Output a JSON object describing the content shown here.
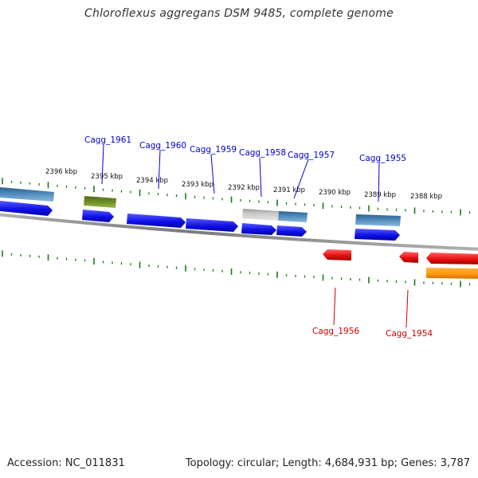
{
  "title": "Chloroflexus aggregans DSM 9485, complete genome",
  "footer": {
    "accession": "Accession: NC_011831",
    "summary": "Topology: circular; Length: 4,684,931 bp; Genes: 3,787"
  },
  "colors": {
    "forward_gene": "#1010e8",
    "reverse_gene": "#e81010",
    "rna": "#4a86b8",
    "olive": "#6b8e23",
    "gray_feature": "#c8c8c8",
    "orange_feature": "#ff9a10",
    "tick": "#1a7a1a",
    "backbone": "#8a8a8a",
    "label_forward": "#0000cc",
    "label_reverse": "#cc0000"
  },
  "scale_labels": [
    "2396 kbp",
    "2395 kbp",
    "2394 kbp",
    "2393 kbp",
    "2392 kbp",
    "2391 kbp",
    "2390 kbp",
    "2389 kbp",
    "2388 kbp"
  ],
  "forward_labels": [
    "Cagg_1961",
    "Cagg_1960",
    "Cagg_1959",
    "Cagg_1958",
    "Cagg_1957",
    "Cagg_1955"
  ],
  "reverse_labels": [
    "Cagg_1956",
    "Cagg_1954"
  ]
}
